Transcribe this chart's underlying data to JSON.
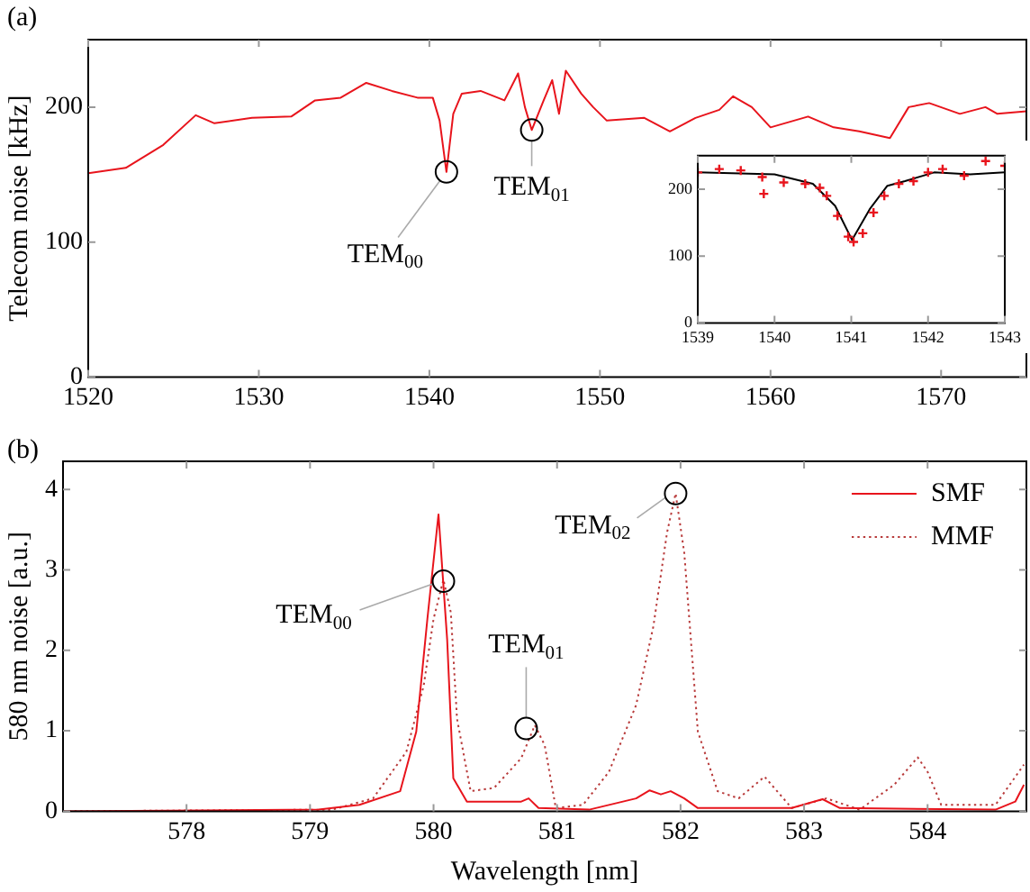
{
  "chart_data": [
    {
      "type": "line",
      "ylabel": "Telecom noise [kHz]",
      "xlim": [
        1520,
        1575
      ],
      "ylim": [
        0,
        250
      ],
      "xticks": [
        1520,
        1530,
        1540,
        1550,
        1560,
        1570
      ],
      "yticks": [
        0,
        100,
        200
      ],
      "annotations": [
        "(a)",
        {
          "text": "TEM$_{00}$",
          "x": 1541,
          "y": 152
        },
        {
          "text": "TEM$_{01}$",
          "x": 1546,
          "y": 183
        }
      ],
      "series": [
        {
          "color": "#e8141c",
          "x": [
            1520,
            1522.2,
            1524.4,
            1526.3,
            1527.4,
            1529.6,
            1531.9,
            1533.3,
            1534.8,
            1536.3,
            1537.8,
            1539.3,
            1540.2,
            1540.6,
            1541.0,
            1541.4,
            1541.9,
            1543.0,
            1544.4,
            1545.2,
            1545.6,
            1546.0,
            1546.7,
            1547.2,
            1547.6,
            1548.0,
            1548.9,
            1549.6,
            1550.4,
            1552.6,
            1554.1,
            1555.6,
            1557.0,
            1557.8,
            1558.9,
            1560.0,
            1562.2,
            1563.7,
            1565.2,
            1567.0,
            1568.1,
            1569.3,
            1571.1,
            1572.6,
            1573.3,
            1575
          ],
          "values": [
            151,
            155,
            172,
            194,
            188,
            192,
            193,
            205,
            207,
            218,
            212,
            207,
            207,
            190,
            152,
            195,
            210,
            212,
            205,
            225,
            200,
            183,
            205,
            220,
            195,
            227,
            210,
            200,
            190,
            192,
            182,
            192,
            198,
            208,
            200,
            185,
            193,
            185,
            182,
            177,
            200,
            203,
            195,
            200,
            195,
            197
          ]
        }
      ]
    },
    {
      "type": "scatter",
      "xlim": [
        1539,
        1543
      ],
      "ylim": [
        0,
        250
      ],
      "xticks": [
        1539,
        1540,
        1541,
        1542,
        1543
      ],
      "yticks": [
        0,
        100,
        200
      ],
      "series": [
        {
          "type": "scatter",
          "marker": "cross",
          "color": "#e8141c",
          "x": [
            1539,
            1539.28,
            1539.56,
            1539.84,
            1539.86,
            1540.12,
            1540.4,
            1540.59,
            1540.68,
            1540.82,
            1540.96,
            1541.03,
            1541.15,
            1541.29,
            1541.43,
            1541.62,
            1541.81,
            1542.0,
            1542.19,
            1542.47,
            1542.75,
            1543
          ],
          "values": [
            225,
            230,
            228,
            218,
            193,
            210,
            208,
            202,
            190,
            160,
            129,
            121,
            134,
            165,
            190,
            208,
            212,
            225,
            230,
            220,
            242,
            235
          ]
        },
        {
          "type": "line",
          "color": "#000000",
          "x": [
            1539,
            1540.0,
            1540.5,
            1540.79,
            1541.01,
            1541.24,
            1541.47,
            1541.7,
            1542.08,
            1542.55,
            1543
          ],
          "values": [
            225,
            222,
            208,
            175,
            124,
            170,
            205,
            212,
            225,
            222,
            225
          ]
        }
      ]
    },
    {
      "type": "line",
      "xlabel": "Wavelength [nm]",
      "ylabel": "580 nm noise [a.u.]",
      "xlim": [
        577,
        584.8
      ],
      "ylim": [
        0,
        4.35
      ],
      "xticks": [
        578,
        579,
        580,
        581,
        582,
        583,
        584
      ],
      "yticks": [
        0,
        1,
        2,
        3,
        4
      ],
      "legend": "top right",
      "annotations": [
        "(b)",
        {
          "text": "TEM$_{00}$",
          "x": 580.08,
          "y": 2.86
        },
        {
          "text": "TEM$_{01}$",
          "x": 580.75,
          "y": 1.03
        },
        {
          "text": "TEM$_{02}$",
          "x": 581.96,
          "y": 3.95
        }
      ],
      "series": [
        {
          "name": "SMF",
          "color": "#e8141c",
          "line_style": "solid",
          "x": [
            577,
            579.07,
            579.4,
            579.73,
            579.86,
            579.95,
            580.04,
            580.11,
            580.16,
            580.27,
            580.71,
            580.77,
            580.85,
            581.26,
            581.64,
            581.75,
            581.84,
            581.92,
            582.03,
            582.14,
            582.9,
            583.15,
            583.29,
            584.55,
            584.71,
            584.78
          ],
          "values": [
            0,
            0.02,
            0.08,
            0.25,
            0.99,
            2.39,
            3.69,
            2.14,
            0.41,
            0.12,
            0.12,
            0.16,
            0.04,
            0.02,
            0.16,
            0.26,
            0.21,
            0.25,
            0.16,
            0.04,
            0.04,
            0.15,
            0.04,
            0.02,
            0.12,
            0.33
          ]
        },
        {
          "name": "MMF",
          "color": "#b83a3a",
          "line_style": "dotted",
          "x": [
            577,
            579.18,
            579.51,
            579.78,
            579.92,
            580,
            580.08,
            580.14,
            580.19,
            580.3,
            580.49,
            580.71,
            580.82,
            580.9,
            580.99,
            581.21,
            581.42,
            581.64,
            581.78,
            581.89,
            581.96,
            582.03,
            582.14,
            582.3,
            582.47,
            582.68,
            582.9,
            583.18,
            583.45,
            583.73,
            583.92,
            584.0,
            584.11,
            584.55,
            584.78
          ],
          "values": [
            0,
            0.02,
            0.16,
            0.74,
            1.56,
            2.39,
            2.88,
            2.47,
            1.15,
            0.25,
            0.29,
            0.66,
            1.07,
            0.82,
            0.04,
            0.08,
            0.49,
            1.32,
            2.3,
            3.46,
            3.95,
            3.21,
            0.99,
            0.25,
            0.16,
            0.43,
            0.04,
            0.16,
            0.02,
            0.33,
            0.67,
            0.49,
            0.08,
            0.08,
            0.58
          ]
        }
      ]
    }
  ]
}
